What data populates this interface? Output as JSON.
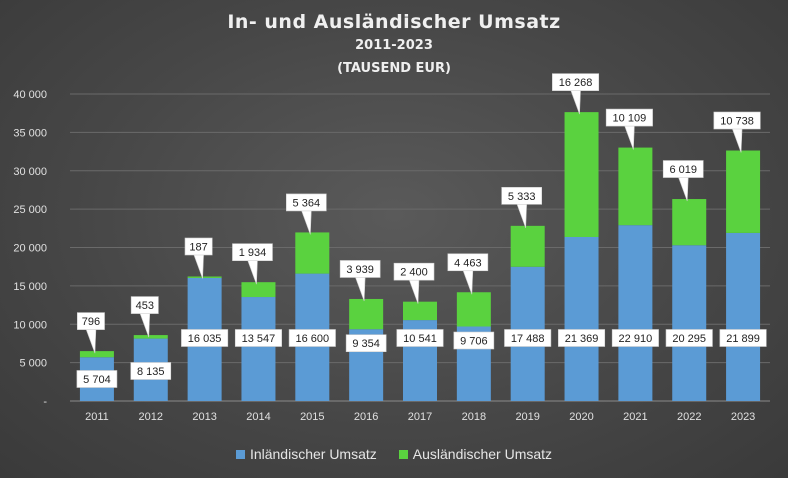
{
  "chart_data": {
    "type": "bar",
    "stacked": true,
    "title": "In- und Ausländischer Umsatz",
    "subtitle": "2011-2023",
    "subtitle2": "(TAUSEND EUR)",
    "categories": [
      "2011",
      "2012",
      "2013",
      "2014",
      "2015",
      "2016",
      "2017",
      "2018",
      "2019",
      "2020",
      "2021",
      "2022",
      "2023"
    ],
    "series": [
      {
        "name": "Inländischer Umsatz",
        "color": "#5b9bd5",
        "values": [
          5704,
          8135,
          16035,
          13547,
          16600,
          9354,
          10541,
          9706,
          17488,
          21369,
          22910,
          20295,
          21899
        ],
        "labels": [
          "5 704",
          "8 135",
          "16 035",
          "13 547",
          "16 600",
          "9 354",
          "10 541",
          "9 706",
          "17 488",
          "21 369",
          "22 910",
          "20 295",
          "21 899"
        ]
      },
      {
        "name": "Ausländischer Umsatz",
        "color": "#5ad23f",
        "values": [
          796,
          453,
          187,
          1934,
          5364,
          3939,
          2400,
          4463,
          5333,
          16268,
          10109,
          6019,
          10738
        ],
        "labels": [
          "796",
          "453",
          "187",
          "1 934",
          "5 364",
          "3 939",
          "2 400",
          "4 463",
          "5 333",
          "16 268",
          "10 109",
          "6 019",
          "10 738"
        ]
      }
    ],
    "ylim": [
      0,
      40000
    ],
    "yticks": [
      0,
      5000,
      10000,
      15000,
      20000,
      25000,
      30000,
      35000,
      40000
    ],
    "ytick_labels": [
      "-",
      "5 000",
      "10 000",
      "15 000",
      "20 000",
      "25 000",
      "30 000",
      "35 000",
      "40 000"
    ],
    "grid": true,
    "legend_position": "bottom"
  }
}
